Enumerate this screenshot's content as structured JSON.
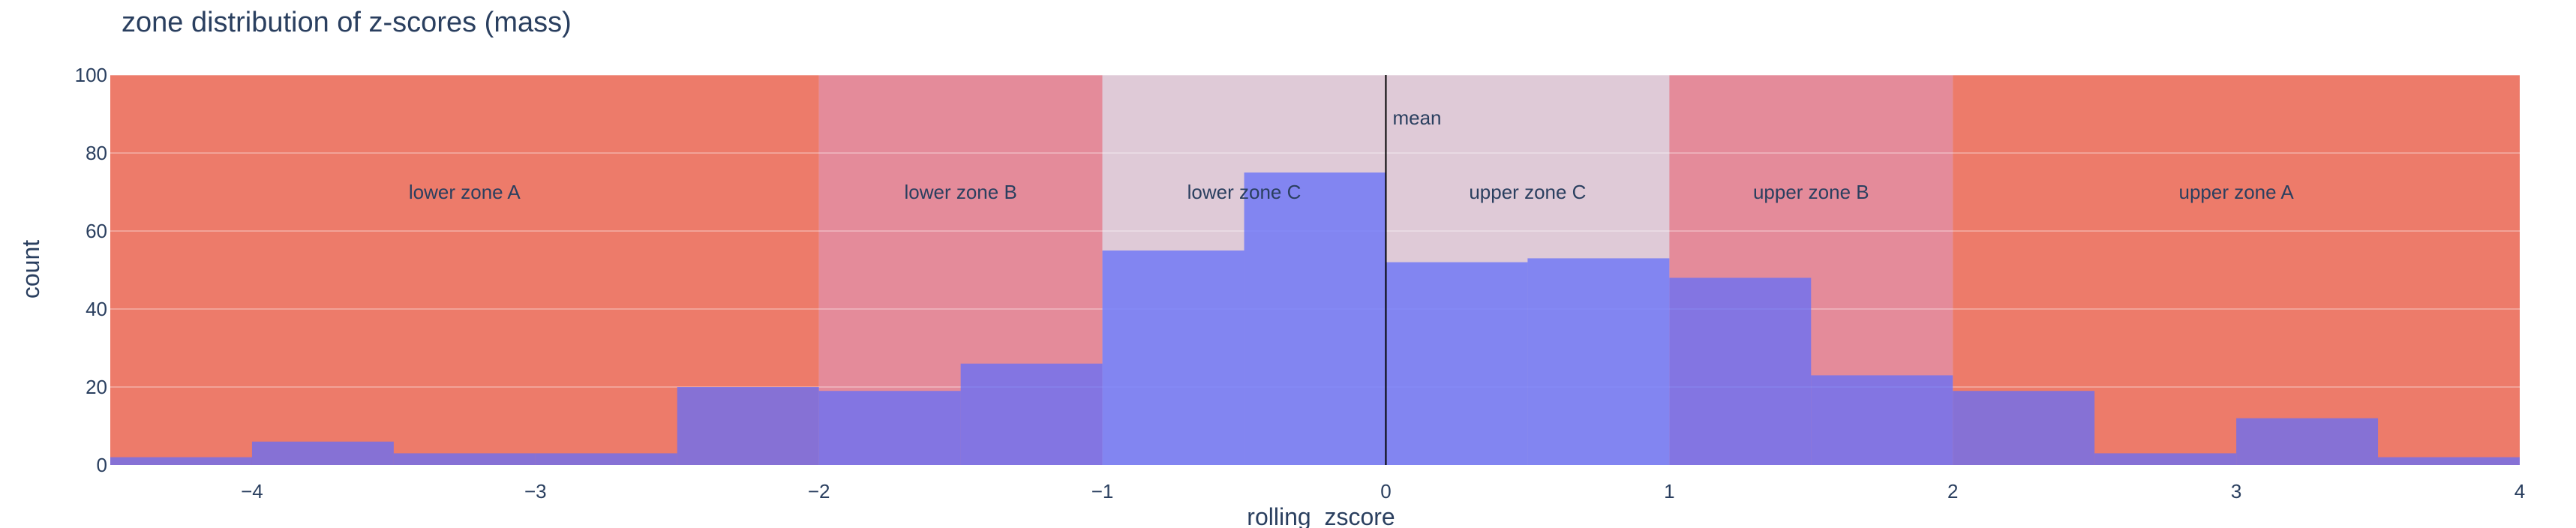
{
  "chart_data": {
    "type": "bar",
    "title": "zone distribution of z-scores (mass)",
    "xlabel": "rolling_zscore",
    "ylabel": "count",
    "xlim": [
      -4.5,
      4
    ],
    "ylim": [
      0,
      100
    ],
    "x_ticks": [
      -4,
      -3,
      -2,
      -1,
      0,
      1,
      2,
      3,
      4
    ],
    "y_ticks": [
      0,
      20,
      40,
      60,
      80,
      100
    ],
    "grid": "horizontal",
    "bins": [
      {
        "x0": -4.5,
        "x1": -4.0,
        "count": 2
      },
      {
        "x0": -4.0,
        "x1": -3.5,
        "count": 6
      },
      {
        "x0": -3.5,
        "x1": -3.0,
        "count": 3
      },
      {
        "x0": -3.0,
        "x1": -2.5,
        "count": 3
      },
      {
        "x0": -2.5,
        "x1": -2.0,
        "count": 20
      },
      {
        "x0": -2.0,
        "x1": -1.5,
        "count": 19
      },
      {
        "x0": -1.5,
        "x1": -1.0,
        "count": 26
      },
      {
        "x0": -1.0,
        "x1": -0.5,
        "count": 55
      },
      {
        "x0": -0.5,
        "x1": 0.0,
        "count": 75
      },
      {
        "x0": 0.0,
        "x1": 0.5,
        "count": 52
      },
      {
        "x0": 0.5,
        "x1": 1.0,
        "count": 53
      },
      {
        "x0": 1.0,
        "x1": 1.5,
        "count": 48
      },
      {
        "x0": 1.5,
        "x1": 2.0,
        "count": 23
      },
      {
        "x0": 2.0,
        "x1": 2.5,
        "count": 19
      },
      {
        "x0": 2.5,
        "x1": 3.0,
        "count": 3
      },
      {
        "x0": 3.0,
        "x1": 3.5,
        "count": 12
      },
      {
        "x0": 3.5,
        "x1": 4.0,
        "count": 2
      }
    ],
    "bar_color": "#636efa",
    "zones": [
      {
        "label": "lower zone A",
        "x0": -4.5,
        "x1": -2,
        "color": "#ef553b"
      },
      {
        "label": "lower zone B",
        "x0": -2,
        "x1": -1,
        "color": "#e36b7b"
      },
      {
        "label": "lower zone C",
        "x0": -1,
        "x1": 0,
        "color": "#dcbfcc"
      },
      {
        "label": "upper zone C",
        "x0": 0,
        "x1": 1,
        "color": "#dcbfcc"
      },
      {
        "label": "upper zone B",
        "x0": 1,
        "x1": 2,
        "color": "#e36b7b"
      },
      {
        "label": "upper zone A",
        "x0": 2,
        "x1": 4,
        "color": "#ef553b"
      }
    ],
    "zone_label_y": 70,
    "annotations": [
      {
        "text": "mean",
        "x": 0,
        "y": 89
      }
    ]
  }
}
